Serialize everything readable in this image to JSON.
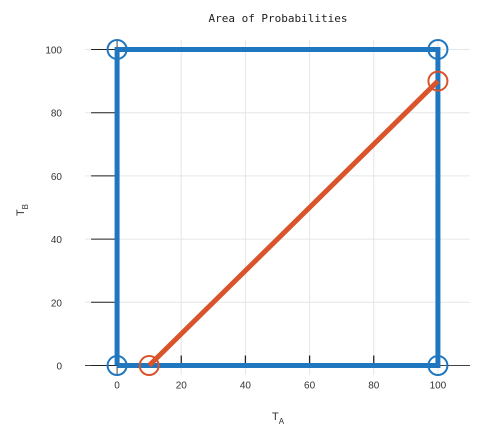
{
  "chart_data": {
    "type": "line",
    "title": "Area of Probabilities",
    "xlabel": "T",
    "xlabel_sub": "A",
    "ylabel": "T",
    "ylabel_sub": "B",
    "xlim": [
      -10,
      110
    ],
    "ylim": [
      -3,
      103
    ],
    "xticks": [
      0,
      20,
      40,
      60,
      80,
      100
    ],
    "yticks": [
      0,
      20,
      40,
      60,
      80,
      100
    ],
    "grid": true,
    "series": [
      {
        "color": "#1f77c0",
        "points": [
          [
            0,
            0
          ],
          [
            0,
            100
          ],
          [
            100,
            100
          ],
          [
            100,
            0
          ],
          [
            0,
            0
          ]
        ],
        "markers": [
          [
            0,
            100
          ],
          [
            100,
            100
          ],
          [
            0,
            0
          ],
          [
            100,
            0
          ]
        ]
      },
      {
        "color": "#d9532b",
        "points": [
          [
            10,
            0
          ],
          [
            100,
            90
          ]
        ],
        "markers": [
          [
            10,
            0
          ],
          [
            100,
            90
          ]
        ]
      }
    ]
  }
}
